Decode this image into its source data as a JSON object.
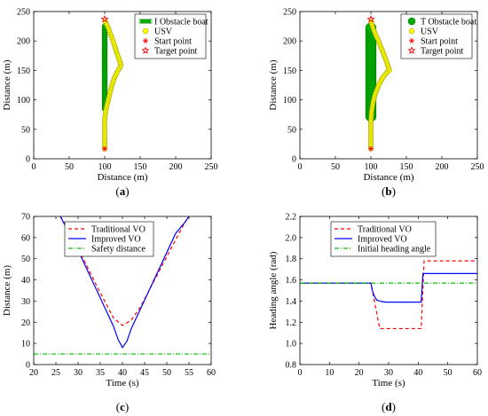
{
  "chart_data": [
    {
      "panel": "(a)",
      "panel_letter": "a",
      "type": "scatter",
      "xlabel": "Distance (m)",
      "ylabel": "Distance (m)",
      "xlim": [
        0,
        250
      ],
      "ylim": [
        0,
        250
      ],
      "xticks": [
        0,
        50,
        100,
        150,
        200,
        250
      ],
      "yticks": [
        0,
        50,
        100,
        150,
        200,
        250
      ],
      "grid": false,
      "legend_position": "top-right",
      "series": [
        {
          "name": "I Obstacle boat",
          "color": "#00b000",
          "marker": "thin-boat",
          "x": [
            100,
            100
          ],
          "y": [
            85,
            225
          ]
        },
        {
          "name": "USV",
          "color": "#ffff00",
          "marker": "circle",
          "x": [
            100,
            100,
            100,
            102,
            105,
            108,
            111,
            114,
            117,
            120,
            123,
            120,
            117,
            114,
            111,
            108,
            105,
            102,
            100
          ],
          "y": [
            17,
            40,
            68,
            85,
            100,
            115,
            128,
            138,
            146,
            152,
            158,
            170,
            180,
            192,
            203,
            212,
            222,
            230,
            237
          ]
        },
        {
          "name": "Start point",
          "color": "#ff0000",
          "marker": "asterisk",
          "x": [
            100
          ],
          "y": [
            17
          ]
        },
        {
          "name": "Target point",
          "color": "#ff0000",
          "marker": "star",
          "x": [
            100
          ],
          "y": [
            237
          ]
        }
      ]
    },
    {
      "panel": "(b)",
      "panel_letter": "b",
      "type": "scatter",
      "xlabel": "Distance (m)",
      "ylabel": "Distance (m)",
      "xlim": [
        0,
        250
      ],
      "ylim": [
        0,
        250
      ],
      "xticks": [
        0,
        50,
        100,
        150,
        200,
        250
      ],
      "yticks": [
        0,
        50,
        100,
        150,
        200,
        250
      ],
      "grid": false,
      "legend_position": "top-right",
      "series": [
        {
          "name": "T Obstacle boat",
          "color": "#00b000",
          "marker": "thick-boat",
          "x": [
            100,
            100
          ],
          "y": [
            72,
            222
          ]
        },
        {
          "name": "USV",
          "color": "#ffff00",
          "marker": "circle",
          "x": [
            100,
            100,
            100,
            101,
            103,
            106,
            110,
            114,
            118,
            122,
            126,
            122,
            118,
            114,
            110,
            106,
            103,
            101,
            100
          ],
          "y": [
            17,
            40,
            65,
            80,
            95,
            110,
            122,
            132,
            140,
            146,
            150,
            165,
            178,
            190,
            202,
            212,
            222,
            230,
            237
          ]
        },
        {
          "name": "Start point",
          "color": "#ff0000",
          "marker": "asterisk",
          "x": [
            100
          ],
          "y": [
            17
          ]
        },
        {
          "name": "Target point",
          "color": "#ff0000",
          "marker": "star",
          "x": [
            100
          ],
          "y": [
            237
          ]
        }
      ]
    },
    {
      "panel": "(c)",
      "panel_letter": "c",
      "type": "line",
      "xlabel": "Time (s)",
      "ylabel": "Distance (m)",
      "xlim": [
        20,
        60
      ],
      "ylim": [
        0,
        70
      ],
      "xticks": [
        20,
        25,
        30,
        35,
        40,
        45,
        50,
        55,
        60
      ],
      "yticks": [
        0,
        10,
        20,
        30,
        40,
        50,
        60,
        70
      ],
      "grid": false,
      "legend_position": "top-left",
      "series": [
        {
          "name": "Traditional VO",
          "color": "#ff0000",
          "dash": "dashed",
          "x": [
            26,
            28,
            30,
            32,
            34,
            36,
            38,
            40,
            42,
            44,
            46,
            48,
            50,
            52,
            54,
            55
          ],
          "y": [
            70,
            63,
            55,
            46.5,
            38,
            30,
            22,
            18.5,
            21,
            27,
            35,
            43,
            51,
            59,
            67,
            70
          ]
        },
        {
          "name": "Improved VO",
          "color": "#0000ff",
          "dash": "solid",
          "x": [
            26,
            28,
            30,
            32,
            34,
            36,
            38,
            39,
            40,
            41,
            42,
            44,
            46,
            48,
            50,
            52,
            54,
            55
          ],
          "y": [
            70,
            62,
            54,
            45,
            36,
            27,
            18,
            12,
            8,
            11,
            17,
            26,
            35,
            44,
            53,
            62,
            67,
            70
          ]
        },
        {
          "name": "Safety distance",
          "color": "#00c000",
          "dash": "dashdot",
          "x": [
            20,
            60
          ],
          "y": [
            5,
            5
          ]
        }
      ]
    },
    {
      "panel": "(d)",
      "panel_letter": "d",
      "type": "line",
      "xlabel": "Time (s)",
      "ylabel": "Heading angle  (rad)",
      "xlim": [
        0,
        60
      ],
      "ylim": [
        0.8,
        2.2
      ],
      "xticks": [
        0,
        10,
        20,
        30,
        40,
        50,
        60
      ],
      "yticks": [
        0.8,
        1.0,
        1.2,
        1.4,
        1.6,
        1.8,
        2.0,
        2.2
      ],
      "grid": false,
      "legend_position": "top-left",
      "series": [
        {
          "name": "Traditional VO",
          "color": "#ff0000",
          "dash": "dashed",
          "x": [
            0,
            24,
            27,
            28,
            41,
            42,
            60
          ],
          "y": [
            1.57,
            1.57,
            1.14,
            1.14,
            1.14,
            1.78,
            1.78
          ]
        },
        {
          "name": "Improved VO",
          "color": "#0000ff",
          "dash": "solid",
          "x": [
            0,
            24,
            24.5,
            25,
            25.5,
            26,
            27,
            28,
            29,
            30,
            41,
            41.6,
            42,
            60
          ],
          "y": [
            1.57,
            1.57,
            1.5,
            1.46,
            1.43,
            1.41,
            1.4,
            1.395,
            1.39,
            1.39,
            1.39,
            1.66,
            1.66,
            1.66
          ]
        },
        {
          "name": "Initial heading angle",
          "color": "#00c000",
          "dash": "dashdot",
          "x": [
            0,
            60
          ],
          "y": [
            1.57,
            1.57
          ]
        }
      ]
    }
  ]
}
